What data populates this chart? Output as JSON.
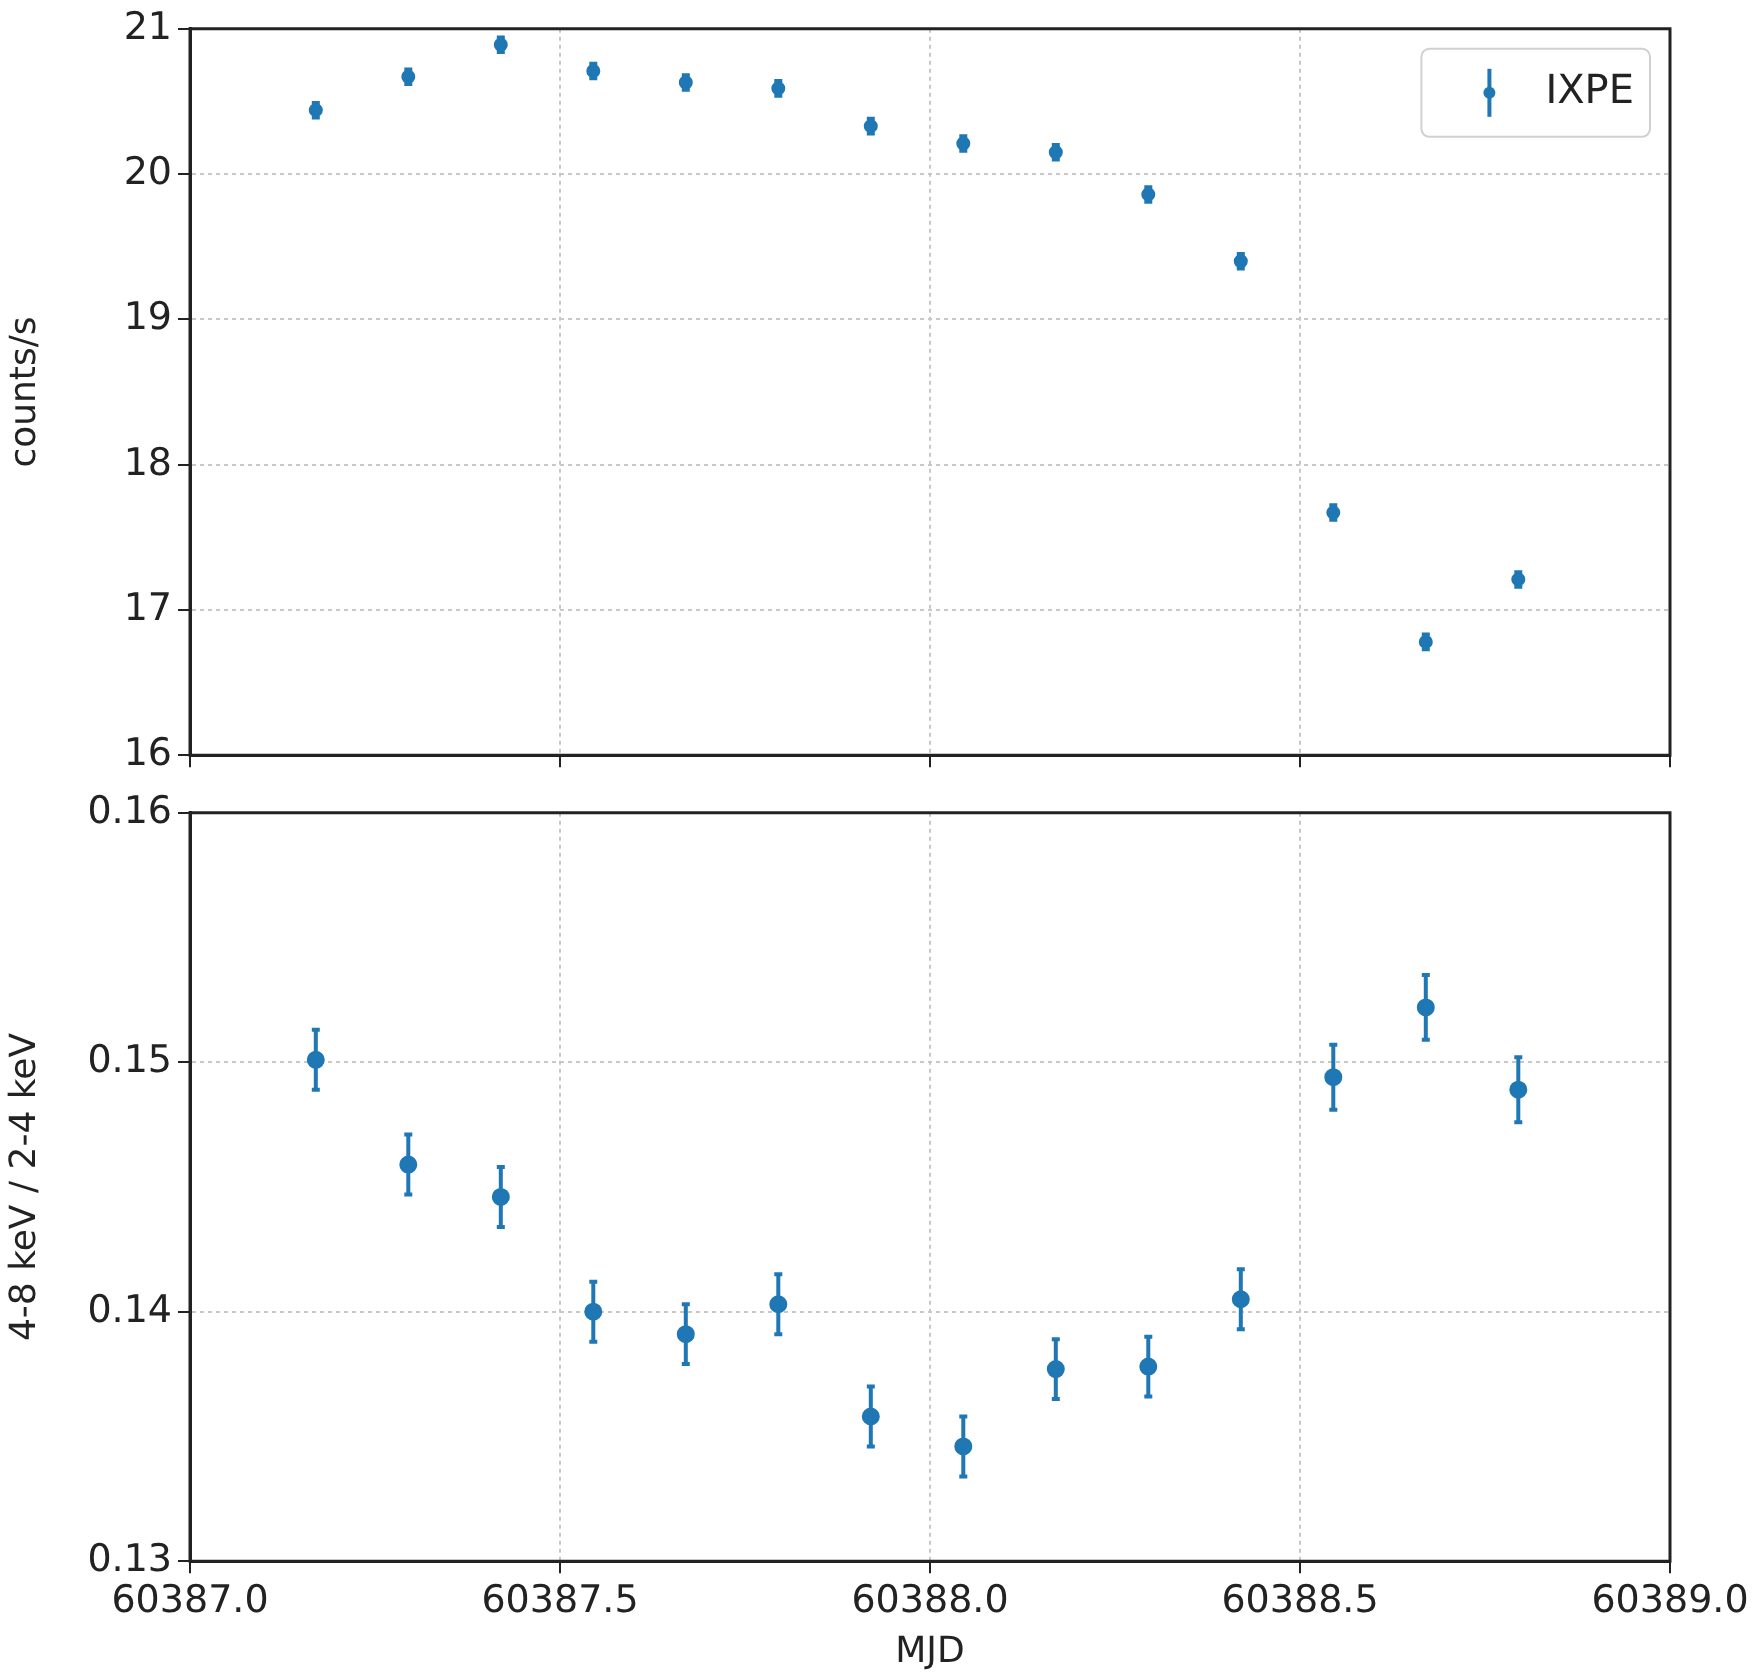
{
  "chart_data": [
    {
      "type": "scatter",
      "ylabel": "counts/s",
      "legend": "top right",
      "grid": true,
      "marker": "circle",
      "tick_labels": "y",
      "x": [
        60387.17,
        60387.295,
        60387.42,
        60387.545,
        60387.67,
        60387.795,
        60387.92,
        60388.045,
        60388.17,
        60388.295,
        60388.42,
        60388.545,
        60388.67,
        60388.795
      ],
      "series": [
        {
          "name": "IXPE",
          "color": "#1f77b4",
          "values": [
            20.44,
            20.67,
            20.89,
            20.71,
            20.63,
            20.59,
            20.33,
            20.21,
            20.15,
            19.86,
            19.4,
            17.67,
            16.78,
            17.21
          ],
          "errors": [
            0.05,
            0.05,
            0.05,
            0.05,
            0.05,
            0.05,
            0.05,
            0.05,
            0.05,
            0.05,
            0.05,
            0.05,
            0.05,
            0.05
          ]
        }
      ],
      "xlim": [
        60387.0,
        60389.0
      ],
      "xticks": [
        60387.0,
        60387.5,
        60388.0,
        60388.5,
        60389.0
      ],
      "ylim": [
        16,
        21
      ],
      "yticks": [
        16,
        17,
        18,
        19,
        20,
        21
      ]
    },
    {
      "type": "scatter",
      "xlabel": "MJD",
      "ylabel": "4-8 keV / 2-4 keV",
      "grid": true,
      "marker": "circle",
      "x": [
        60387.17,
        60387.295,
        60387.42,
        60387.545,
        60387.67,
        60387.795,
        60387.92,
        60388.045,
        60388.17,
        60388.295,
        60388.42,
        60388.545,
        60388.67,
        60388.795
      ],
      "series": [
        {
          "color": "#1f77b4",
          "values": [
            0.1501,
            0.1459,
            0.1446,
            0.14,
            0.1391,
            0.1403,
            0.1358,
            0.1346,
            0.1377,
            0.1378,
            0.1405,
            0.1494,
            0.1522,
            0.1489
          ],
          "errors": [
            0.0012,
            0.0012,
            0.0012,
            0.0012,
            0.0012,
            0.0012,
            0.0012,
            0.0012,
            0.0012,
            0.0012,
            0.0012,
            0.0013,
            0.0013,
            0.0013
          ]
        }
      ],
      "xlim": [
        60387.0,
        60389.0
      ],
      "xticks": [
        {
          "value": 60387.0,
          "label": "60387.0"
        },
        {
          "value": 60387.5,
          "label": "60387.5"
        },
        {
          "value": 60388.0,
          "label": "60388.0"
        },
        {
          "value": 60388.5,
          "label": "60388.5"
        },
        {
          "value": 60389.0,
          "label": "60389.0"
        }
      ],
      "ylim": [
        0.13,
        0.16
      ],
      "yticks": [
        0.13,
        0.14,
        0.15,
        0.16
      ]
    }
  ]
}
